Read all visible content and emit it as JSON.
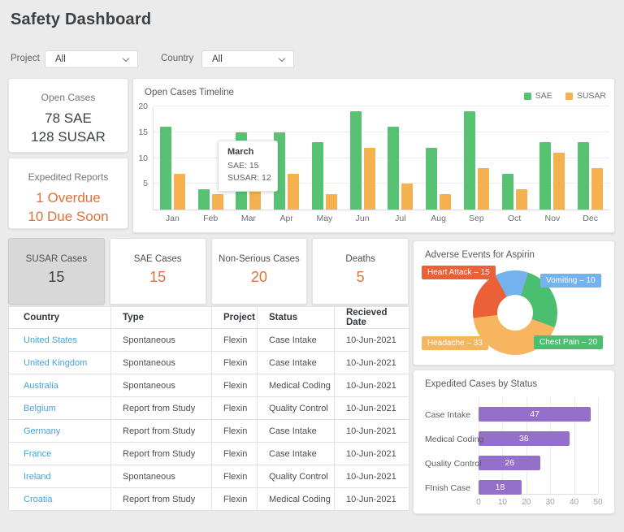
{
  "page": {
    "title": "Safety Dashboard"
  },
  "filters": {
    "project": {
      "label": "Project",
      "value": "All"
    },
    "country": {
      "label": "Country",
      "value": "All"
    }
  },
  "summary": {
    "open_cases": {
      "title": "Open Cases",
      "line1": "78 SAE",
      "line2": "128 SUSAR"
    },
    "expedited_reports": {
      "title": "Expedited Reports",
      "line1": "1 Overdue",
      "line2": "10 Due Soon"
    }
  },
  "stat_cards": [
    {
      "label": "SUSAR Cases",
      "value": "15",
      "selected": true
    },
    {
      "label": "SAE Cases",
      "value": "15",
      "selected": false
    },
    {
      "label": "Non-Serious Cases",
      "value": "20",
      "selected": false
    },
    {
      "label": "Deaths",
      "value": "5",
      "selected": false
    }
  ],
  "table": {
    "columns": [
      "Country",
      "Type",
      "Project",
      "Status",
      "Recieved Date"
    ],
    "rows": [
      [
        "United States",
        "Spontaneous",
        "Flexin",
        "Case Intake",
        "10-Jun-2021"
      ],
      [
        "United Kingdom",
        "Spontaneous",
        "Flexin",
        "Case Intake",
        "10-Jun-2021"
      ],
      [
        "Australia",
        "Spontaneous",
        "Flexin",
        "Medical Coding",
        "10-Jun-2021"
      ],
      [
        "Belgium",
        "Report from Study",
        "Flexin",
        "Quality Control",
        "10-Jun-2021"
      ],
      [
        "Germany",
        "Report from Study",
        "Flexin",
        "Case Intake",
        "10-Jun-2021"
      ],
      [
        "France",
        "Report from Study",
        "Flexin",
        "Case Intake",
        "10-Jun-2021"
      ],
      [
        "Ireland",
        "Spontaneous",
        "Flexin",
        "Quality Control",
        "10-Jun-2021"
      ],
      [
        "Croatia",
        "Report from Study",
        "Flexin",
        "Medical Coding",
        "10-Jun-2021"
      ]
    ]
  },
  "chart_data": [
    {
      "id": "open-cases-timeline",
      "type": "bar",
      "title": "Open Cases Timeline",
      "categories": [
        "Jan",
        "Feb",
        "Mar",
        "Apr",
        "May",
        "Jun",
        "Jul",
        "Aug",
        "Sep",
        "Oct",
        "Nov",
        "Dec"
      ],
      "series": [
        {
          "name": "SAE",
          "color": "#58c273",
          "values": [
            16,
            4,
            15,
            15,
            13,
            19,
            16,
            12,
            19,
            7,
            13,
            13
          ]
        },
        {
          "name": "SUSAR",
          "color": "#f5b04f",
          "values": [
            7,
            3,
            12,
            7,
            3,
            12,
            5,
            3,
            8,
            4,
            11,
            8
          ]
        }
      ],
      "ylim": [
        0,
        20
      ],
      "yticks": [
        5,
        10,
        15,
        20
      ],
      "legend_position": "top-right",
      "grid": true,
      "tooltip": {
        "title": "March",
        "lines": [
          "SAE: 15",
          "SUSAR:  12"
        ]
      }
    },
    {
      "id": "adverse-events",
      "type": "pie",
      "title": "Adverse Events for Aspirin",
      "start_angle": -28,
      "slices": [
        {
          "label": "Vomiting",
          "value": 10,
          "display": "Vomiting – 10",
          "color": "#74b2ee"
        },
        {
          "label": "Chest Pain",
          "value": 20,
          "display": "Chest Pain – 20",
          "color": "#4cbe70"
        },
        {
          "label": "Headache",
          "value": 33,
          "display": "Headache – 33",
          "color": "#f7b55f"
        },
        {
          "label": "Heart Attack",
          "value": 15,
          "display": "Heart Attack – 15",
          "color": "#eb6036"
        }
      ]
    },
    {
      "id": "expedited-cases-by-status",
      "type": "bar",
      "title": "Expedited Cases by Status",
      "orientation": "horizontal",
      "categories": [
        "Case Intake",
        "Medical Coding",
        "Quality Control",
        "FInish Case"
      ],
      "values": [
        47,
        38,
        26,
        18
      ],
      "color": "#9570cb",
      "xlim": [
        0,
        50
      ],
      "xticks": [
        0,
        10,
        20,
        30,
        40,
        50
      ],
      "grid": true
    }
  ],
  "colors": {
    "accent_orange": "#e2703a",
    "link_blue": "#47a3d8",
    "selected_card_bg": "#d8d8d8",
    "page_bg": "#ebebeb"
  }
}
